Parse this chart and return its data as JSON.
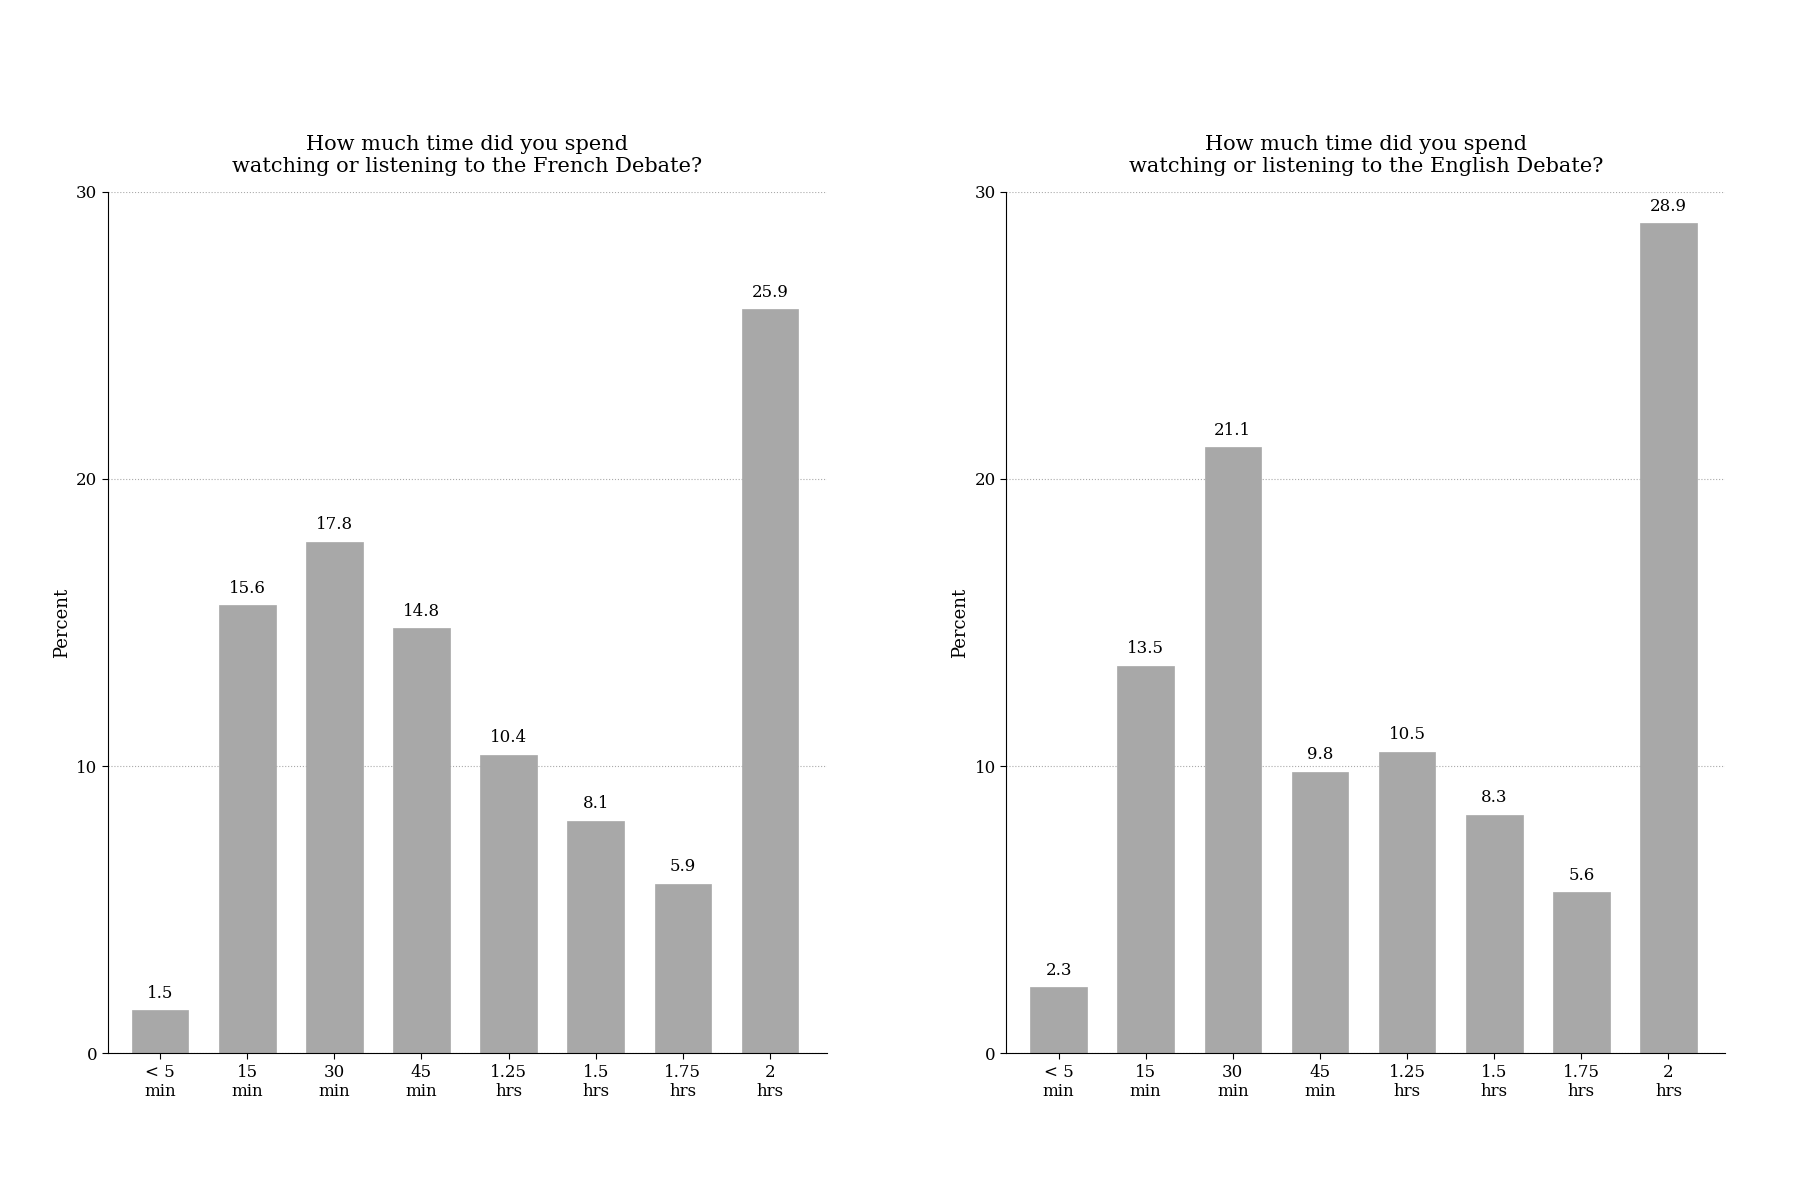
{
  "french": {
    "title": "How much time did you spend\nwatching or listening to the French Debate?",
    "values": [
      1.5,
      15.6,
      17.8,
      14.8,
      10.4,
      8.1,
      5.9,
      25.9
    ],
    "labels": [
      "< 5\nmin",
      "15\nmin",
      "30\nmin",
      "45\nmin",
      "1.25\nhrs",
      "1.5\nhrs",
      "1.75\nhrs",
      "2\nhrs"
    ]
  },
  "english": {
    "title": "How much time did you spend\nwatching or listening to the English Debate?",
    "values": [
      2.3,
      13.5,
      21.1,
      9.8,
      10.5,
      8.3,
      5.6,
      28.9
    ],
    "labels": [
      "< 5\nmin",
      "15\nmin",
      "30\nmin",
      "45\nmin",
      "1.25\nhrs",
      "1.5\nhrs",
      "1.75\nhrs",
      "2\nhrs"
    ]
  },
  "bar_color": "#a8a8a8",
  "bar_edgecolor": "#a8a8a8",
  "ylabel": "Percent",
  "ylim": [
    0,
    30
  ],
  "yticks": [
    0,
    10,
    20,
    30
  ],
  "grid_color": "#aaaaaa",
  "grid_linestyle": "dotted",
  "title_fontsize": 15,
  "label_fontsize": 13,
  "tick_fontsize": 12,
  "value_fontsize": 12,
  "background_color": "#ffffff"
}
